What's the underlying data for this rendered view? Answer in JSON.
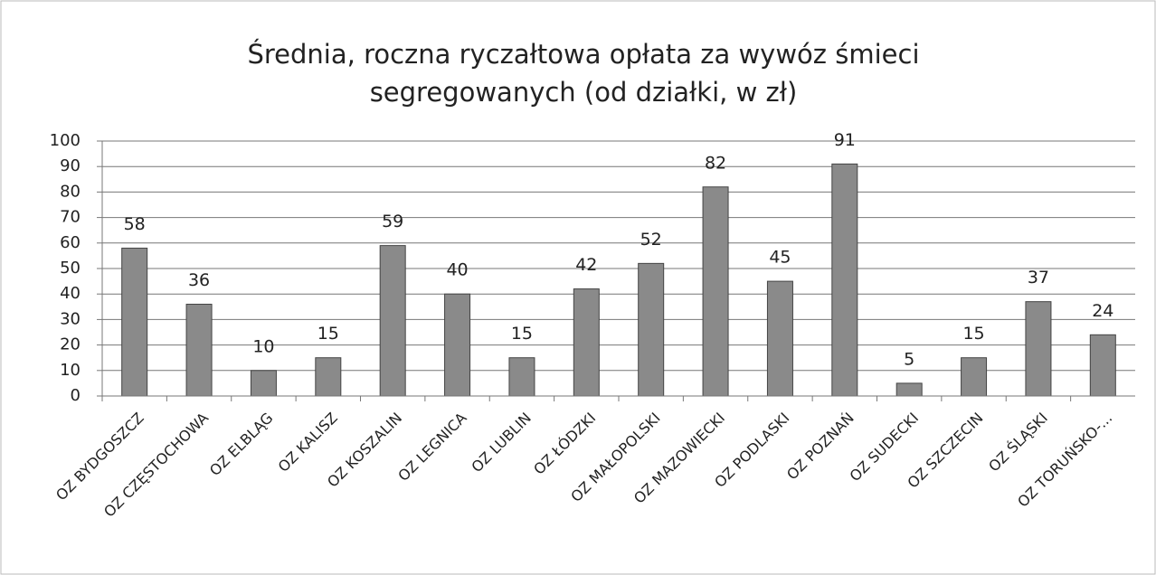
{
  "chart_data": {
    "type": "bar",
    "title": [
      "Średnia, roczna ryczałtowa opłata za wywóz śmieci",
      "segregowanych (od działki, w zł)"
    ],
    "categories": [
      "OZ BYDGOSZCZ",
      "OZ CZĘSTOCHOWA",
      "OZ ELBLĄG",
      "OZ KALISZ",
      "OZ KOSZALIN",
      "OZ LEGNICA",
      "OZ LUBLIN",
      "OZ ŁÓDZKI",
      "OZ MAŁOPOLSKI",
      "OZ MAZOWIECKI",
      "OZ PODLASKI",
      "OZ POZNAŃ",
      "OZ SUDECKI",
      "OZ SZCZECIN",
      "OZ ŚLĄSKI",
      "OZ TORUŃSKO-..."
    ],
    "values": [
      58,
      36,
      10,
      15,
      59,
      40,
      15,
      42,
      52,
      82,
      45,
      91,
      5,
      15,
      37,
      24
    ],
    "color": "#8a8a8a",
    "ylim": [
      0,
      100
    ],
    "yticks": [
      0,
      10,
      20,
      30,
      40,
      50,
      60,
      70,
      80,
      90,
      100
    ],
    "grid": true
  }
}
